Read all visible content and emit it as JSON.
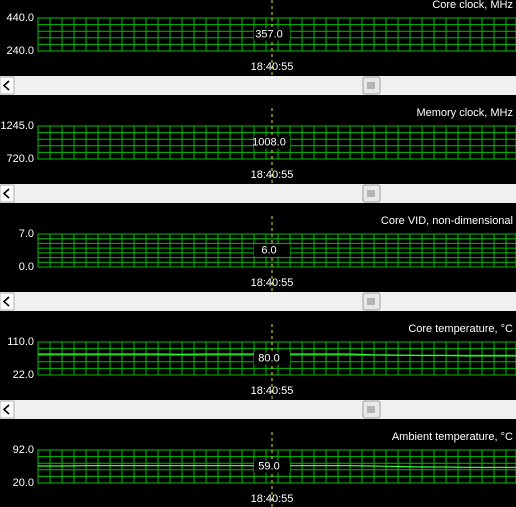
{
  "panels": [
    {
      "title": "Core clock, MHz",
      "max": "440.0",
      "min": "240.0",
      "cursor_value": "357.0",
      "time": "18:40:55"
    },
    {
      "title": "Memory clock, MHz",
      "max": "1245.0",
      "min": "720.0",
      "cursor_value": "1008.0",
      "time": "18:40:55"
    },
    {
      "title": "Core VID, non-dimensional",
      "max": "7.0",
      "min": "0.0",
      "cursor_value": "6.0",
      "time": "18:40:55"
    },
    {
      "title": "Core temperature, °C",
      "max": "110.0",
      "min": "22.0",
      "cursor_value": "80.0",
      "time": "18:40:55",
      "trace": [
        78,
        78,
        78,
        78,
        78,
        78,
        77,
        78,
        78,
        78,
        78,
        78,
        78,
        78,
        76,
        75,
        74,
        74,
        73,
        73,
        73
      ]
    },
    {
      "title": "Ambient temperature, °C",
      "max": "92.0",
      "min": "20.0",
      "cursor_value": "59.0",
      "time": "18:40:55",
      "trace": [
        57,
        57,
        58,
        58,
        58,
        58,
        58,
        58,
        58,
        58,
        58,
        58,
        58,
        58,
        57,
        56,
        55,
        55,
        54,
        54,
        54
      ]
    }
  ]
}
